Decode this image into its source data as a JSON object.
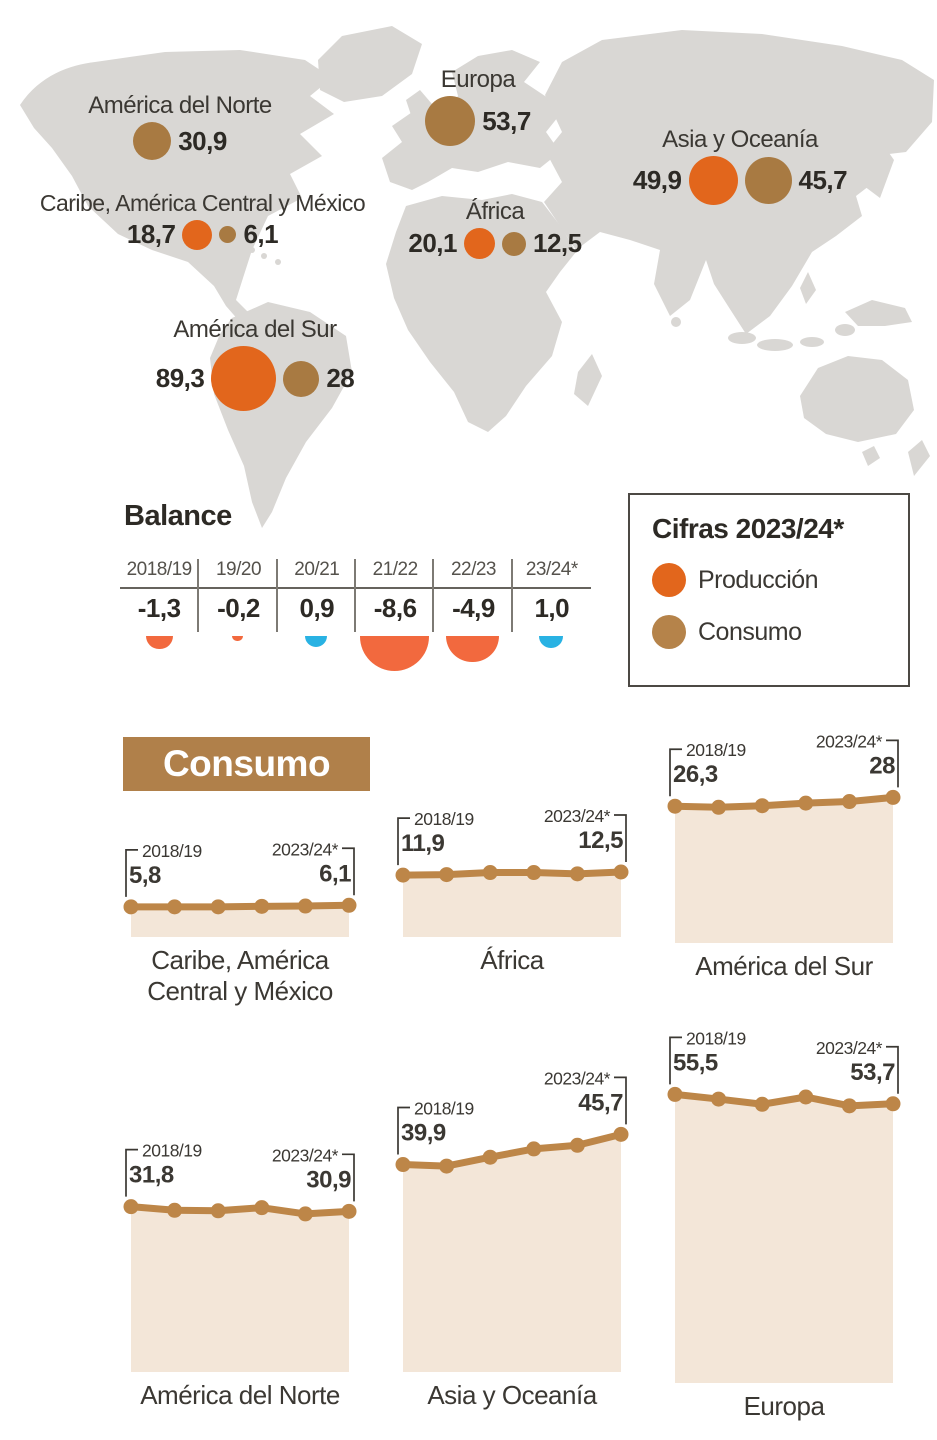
{
  "map": {
    "regions": [
      {
        "name": "América del Norte",
        "consumo": "30,9",
        "consumo_num": 30.9
      },
      {
        "name": "Caribe, América Central y México",
        "produccion": "18,7",
        "produccion_num": 18.7,
        "consumo": "6,1",
        "consumo_num": 6.1
      },
      {
        "name": "Europa",
        "consumo": "53,7",
        "consumo_num": 53.7
      },
      {
        "name": "Asia y Oceanía",
        "produccion": "49,9",
        "produccion_num": 49.9,
        "consumo": "45,7",
        "consumo_num": 45.7
      },
      {
        "name": "África",
        "produccion": "20,1",
        "produccion_num": 20.1,
        "consumo": "12,5",
        "consumo_num": 12.5
      },
      {
        "name": "América del Sur",
        "produccion": "89,3",
        "produccion_num": 89.3,
        "consumo": "28",
        "consumo_num": 28
      }
    ]
  },
  "balance": {
    "title": "Balance",
    "columns": [
      {
        "season": "2018/19",
        "value": "-1,3",
        "num": -1.3
      },
      {
        "season": "19/20",
        "value": "-0,2",
        "num": -0.2
      },
      {
        "season": "20/21",
        "value": "0,9",
        "num": 0.9
      },
      {
        "season": "21/22",
        "value": "-8,6",
        "num": -8.6
      },
      {
        "season": "22/23",
        "value": "-4,9",
        "num": -4.9
      },
      {
        "season": "23/24*",
        "value": "1,0",
        "num": 1.0
      }
    ]
  },
  "legend": {
    "title": "Cifras 2023/24*",
    "produccion": "Producción",
    "consumo": "Consumo"
  },
  "consumo": {
    "title": "Consumo",
    "charts": [
      {
        "label_lines": [
          "Caribe, América",
          "Central y México"
        ],
        "start_season": "2018/19",
        "start_value": "5,8",
        "end_season": "2023/24*",
        "end_value": "6,1",
        "values": [
          5.8,
          5.8,
          5.8,
          5.9,
          5.95,
          6.1
        ]
      },
      {
        "label_lines": [
          "África"
        ],
        "start_season": "2018/19",
        "start_value": "11,9",
        "end_season": "2023/24*",
        "end_value": "12,5",
        "values": [
          11.9,
          12.0,
          12.4,
          12.4,
          12.15,
          12.5
        ]
      },
      {
        "label_lines": [
          "América del Sur"
        ],
        "start_season": "2018/19",
        "start_value": "26,3",
        "end_season": "2023/24*",
        "end_value": "28",
        "values": [
          26.3,
          26.1,
          26.4,
          26.9,
          27.2,
          28
        ]
      },
      {
        "label_lines": [
          "América del Norte"
        ],
        "start_season": "2018/19",
        "start_value": "31,8",
        "end_season": "2023/24*",
        "end_value": "30,9",
        "values": [
          31.8,
          31.1,
          31.0,
          31.6,
          30.4,
          30.9
        ]
      },
      {
        "label_lines": [
          "Asia y Oceanía"
        ],
        "start_season": "2018/19",
        "start_value": "39,9",
        "end_season": "2023/24*",
        "end_value": "45,7",
        "values": [
          39.9,
          39.6,
          41.3,
          42.9,
          43.6,
          45.7
        ]
      },
      {
        "label_lines": [
          "Europa"
        ],
        "start_season": "2018/19",
        "start_value": "55,5",
        "end_season": "2023/24*",
        "end_value": "53,7",
        "values": [
          55.5,
          54.6,
          53.6,
          55.0,
          53.3,
          53.7
        ]
      }
    ]
  },
  "colors": {
    "produccion": "#e2661c",
    "consumo_bubble": "#a87a42",
    "legend_consumo": "#b5834a",
    "line": "#bd8648",
    "area": "#f3e6d8",
    "positivo": "#29b2e3",
    "negativo": "#f2693e",
    "banner": "#b0804a",
    "map": "#d9d7d4"
  },
  "chart_data": [
    {
      "type": "scatter",
      "subtype": "bubble-map",
      "title": "Cifras 2023/24*",
      "legend": [
        "Producción",
        "Consumo"
      ],
      "legend_position": "right box",
      "regions": [
        {
          "name": "América del Norte",
          "produccion": null,
          "consumo": 30.9
        },
        {
          "name": "Caribe, América Central y México",
          "produccion": 18.7,
          "consumo": 6.1
        },
        {
          "name": "Europa",
          "produccion": null,
          "consumo": 53.7
        },
        {
          "name": "Asia y Oceanía",
          "produccion": 49.9,
          "consumo": 45.7
        },
        {
          "name": "África",
          "produccion": 20.1,
          "consumo": 12.5
        },
        {
          "name": "América del Sur",
          "produccion": 89.3,
          "consumo": 28
        }
      ]
    },
    {
      "type": "bar",
      "subtype": "proportional-semicircles",
      "title": "Balance",
      "categories": [
        "2018/19",
        "19/20",
        "20/21",
        "21/22",
        "22/23",
        "23/24*"
      ],
      "values": [
        -1.3,
        -0.2,
        0.9,
        -8.6,
        -4.9,
        1.0
      ],
      "negative_color": "#f2693e",
      "positive_color": "#29b2e3"
    },
    {
      "type": "area",
      "title": "Consumo",
      "x": [
        "2018/19",
        "19/20",
        "20/21",
        "21/22",
        "22/23",
        "23/24*"
      ],
      "series": [
        {
          "name": "Caribe, América Central y México",
          "values": [
            5.8,
            5.8,
            5.8,
            5.9,
            5.95,
            6.1
          ],
          "labeled_endpoints": [
            5.8,
            6.1
          ]
        },
        {
          "name": "África",
          "values": [
            11.9,
            12.0,
            12.4,
            12.4,
            12.15,
            12.5
          ],
          "labeled_endpoints": [
            11.9,
            12.5
          ]
        },
        {
          "name": "América del Sur",
          "values": [
            26.3,
            26.1,
            26.4,
            26.9,
            27.2,
            28
          ],
          "labeled_endpoints": [
            26.3,
            28
          ]
        },
        {
          "name": "América del Norte",
          "values": [
            31.8,
            31.1,
            31.0,
            31.6,
            30.4,
            30.9
          ],
          "labeled_endpoints": [
            31.8,
            30.9
          ]
        },
        {
          "name": "Asia y Oceanía",
          "values": [
            39.9,
            39.6,
            41.3,
            42.9,
            43.6,
            45.7
          ],
          "labeled_endpoints": [
            39.9,
            45.7
          ]
        },
        {
          "name": "Europa",
          "values": [
            55.5,
            54.6,
            53.6,
            55.0,
            53.3,
            53.7
          ],
          "labeled_endpoints": [
            55.5,
            53.7
          ]
        }
      ]
    }
  ]
}
